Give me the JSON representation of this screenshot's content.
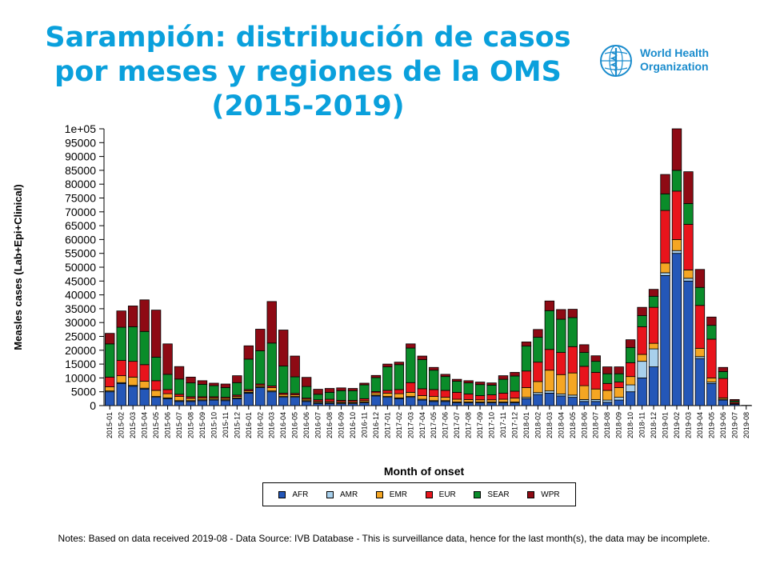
{
  "title_lines": [
    "Sarampión: distribución de casos",
    "por meses y regiones de la OMS",
    "(2015-2019)"
  ],
  "logo": {
    "line1": "World Health",
    "line2": "Organization",
    "icon": "who-emblem-icon",
    "color": "#1a8ccd"
  },
  "notes": "Notes: Based on data received 2019-08 - Data Source: IVB Database - This is surveillance data, hence for the last month(s), the data may be incomplete.",
  "chart_data": {
    "type": "bar",
    "stacked": true,
    "xlabel": "Month of onset",
    "ylabel": "Measles cases (Lab+Epi+Clinical)",
    "ylim": [
      0,
      100000
    ],
    "yticks": [
      "0",
      "5000",
      "10000",
      "15000",
      "20000",
      "25000",
      "30000",
      "35000",
      "40000",
      "45000",
      "50000",
      "55000",
      "60000",
      "65000",
      "70000",
      "75000",
      "80000",
      "85000",
      "90000",
      "95000",
      "1e+05"
    ],
    "legend_position": "bottom",
    "categories": [
      "2015-01",
      "2015-02",
      "2015-03",
      "2015-04",
      "2015-05",
      "2015-06",
      "2015-07",
      "2015-08",
      "2015-09",
      "2015-10",
      "2015-11",
      "2015-12",
      "2016-01",
      "2016-02",
      "2016-03",
      "2016-04",
      "2016-05",
      "2016-06",
      "2016-07",
      "2016-08",
      "2016-09",
      "2016-10",
      "2016-11",
      "2016-12",
      "2017-01",
      "2017-02",
      "2017-03",
      "2017-04",
      "2017-05",
      "2017-06",
      "2017-07",
      "2017-08",
      "2017-09",
      "2017-10",
      "2017-11",
      "2017-12",
      "2018-01",
      "2018-02",
      "2018-03",
      "2018-04",
      "2018-05",
      "2018-06",
      "2018-07",
      "2018-08",
      "2018-09",
      "2018-10",
      "2018-11",
      "2018-12",
      "2019-01",
      "2019-02",
      "2019-03",
      "2019-04",
      "2019-05",
      "2019-06",
      "2019-07",
      "2019-08"
    ],
    "series": [
      {
        "name": "AFR",
        "color": "#2457b8",
        "values": [
          5000,
          8000,
          7000,
          6000,
          3000,
          2500,
          1500,
          1500,
          1800,
          2000,
          1800,
          2500,
          4500,
          6500,
          5000,
          3000,
          3000,
          1500,
          800,
          800,
          700,
          700,
          1000,
          3500,
          3000,
          2500,
          3000,
          2000,
          1500,
          1500,
          1000,
          1000,
          1000,
          1000,
          1000,
          1000,
          2500,
          4000,
          4500,
          3500,
          3000,
          1500,
          1500,
          1200,
          2000,
          5000,
          10000,
          14000,
          47000,
          55000,
          45000,
          17000,
          8000,
          2000,
          500,
          100
        ]
      },
      {
        "name": "AMR",
        "color": "#a8d0ec",
        "values": [
          300,
          300,
          300,
          300,
          300,
          300,
          300,
          300,
          300,
          300,
          300,
          300,
          300,
          300,
          300,
          300,
          300,
          300,
          300,
          300,
          300,
          300,
          300,
          300,
          300,
          300,
          300,
          300,
          300,
          300,
          300,
          300,
          300,
          300,
          300,
          300,
          500,
          700,
          800,
          700,
          800,
          700,
          700,
          800,
          1000,
          2500,
          6000,
          6500,
          1000,
          1000,
          1000,
          700,
          500,
          300,
          100,
          0
        ]
      },
      {
        "name": "EMR",
        "color": "#f5a623",
        "values": [
          1500,
          2500,
          3000,
          2500,
          2200,
          1500,
          1500,
          800,
          600,
          500,
          500,
          500,
          500,
          500,
          1200,
          700,
          600,
          500,
          400,
          400,
          400,
          400,
          500,
          800,
          1200,
          1500,
          1500,
          1300,
          1500,
          1200,
          1000,
          900,
          800,
          800,
          1000,
          1400,
          3500,
          4000,
          7500,
          7000,
          8000,
          5000,
          3800,
          3500,
          3500,
          3000,
          2500,
          2000,
          3500,
          4000,
          3000,
          3000,
          1500,
          500,
          100,
          0
        ]
      },
      {
        "name": "EUR",
        "color": "#e8141c",
        "values": [
          3500,
          5500,
          5700,
          6000,
          3500,
          1500,
          800,
          600,
          500,
          400,
          400,
          500,
          500,
          500,
          600,
          500,
          500,
          400,
          600,
          800,
          500,
          500,
          700,
          500,
          1000,
          1500,
          3500,
          2500,
          2500,
          2500,
          2500,
          2000,
          1500,
          1800,
          2200,
          2500,
          6000,
          7000,
          7500,
          8000,
          9500,
          7000,
          6000,
          2500,
          2000,
          5000,
          10000,
          13000,
          19000,
          17500,
          16500,
          15500,
          14000,
          7000,
          500,
          0
        ]
      },
      {
        "name": "SEAR",
        "color": "#0a8c2a",
        "values": [
          12000,
          12000,
          12500,
          12000,
          8500,
          5500,
          5500,
          5000,
          4500,
          4000,
          3500,
          4500,
          11000,
          12000,
          15500,
          9800,
          6000,
          4200,
          2000,
          2500,
          3500,
          3500,
          5000,
          5000,
          8500,
          9000,
          12500,
          10500,
          7000,
          5000,
          4000,
          4000,
          4000,
          3500,
          5000,
          5500,
          9000,
          9000,
          14000,
          12000,
          10500,
          5000,
          4000,
          3500,
          3000,
          5500,
          4000,
          4000,
          6000,
          7500,
          7500,
          6500,
          5000,
          2500,
          500,
          0
        ]
      },
      {
        "name": "WPR",
        "color": "#8e0a14",
        "values": [
          3800,
          5900,
          7500,
          11400,
          17000,
          11000,
          4500,
          2100,
          1300,
          900,
          1300,
          2500,
          4800,
          7800,
          15000,
          13000,
          7500,
          3300,
          1800,
          1400,
          1000,
          800,
          600,
          800,
          1000,
          900,
          1500,
          1300,
          1000,
          800,
          700,
          800,
          900,
          800,
          1300,
          1300,
          1500,
          2800,
          3500,
          3500,
          3000,
          2800,
          2000,
          2500,
          2500,
          2800,
          3000,
          2500,
          7000,
          15000,
          11500,
          6500,
          3000,
          1500,
          500,
          0
        ]
      }
    ]
  }
}
